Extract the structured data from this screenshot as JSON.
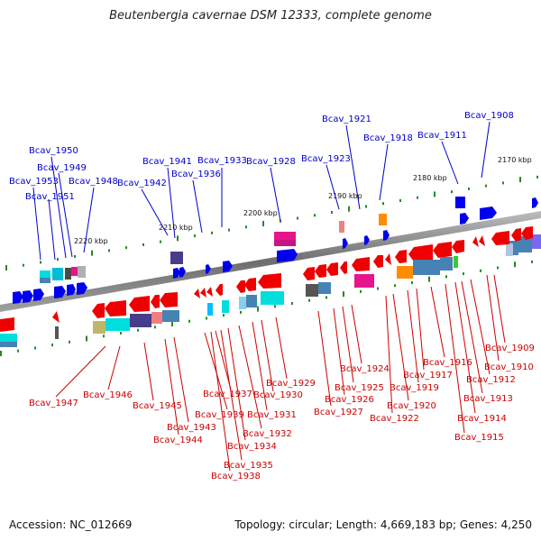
{
  "title": "Beutenbergia cavernae DSM 12333, complete genome",
  "footer": {
    "accession": "Accession: NC_012669",
    "topology": "Topology: circular; Length: 4,669,183 bp; Genes: 4,250"
  },
  "positions": [
    "2170 kbp",
    "2180 kbp",
    "2190 kbp",
    "2200 kbp",
    "2210 kbp",
    "2220 kbp"
  ],
  "labels_top": [
    "Bcav_1908",
    "Bcav_1911",
    "Bcav_1918",
    "Bcav_1921",
    "Bcav_1923",
    "Bcav_1928",
    "Bcav_1933",
    "Bcav_1936",
    "Bcav_1941",
    "Bcav_1942",
    "Bcav_1948",
    "Bcav_1949",
    "Bcav_1950",
    "Bcav_1951",
    "Bcav_1953"
  ],
  "labels_bottom": [
    "Bcav_1909",
    "Bcav_1910",
    "Bcav_1912",
    "Bcav_1913",
    "Bcav_1914",
    "Bcav_1915",
    "Bcav_1916",
    "Bcav_1917",
    "Bcav_1919",
    "Bcav_1920",
    "Bcav_1922",
    "Bcav_1924",
    "Bcav_1925",
    "Bcav_1926",
    "Bcav_1927",
    "Bcav_1929",
    "Bcav_1930",
    "Bcav_1931",
    "Bcav_1932",
    "Bcav_1934",
    "Bcav_1935",
    "Bcav_1937",
    "Bcav_1938",
    "Bcav_1939",
    "Bcav_1943",
    "Bcav_1944",
    "Bcav_1945",
    "Bcav_1946",
    "Bcav_1947"
  ],
  "colors": {
    "forward": "#0000ee",
    "reverse": "#ee0000",
    "backbone": "#808080",
    "cog_cyan": "#00dddd",
    "cog_steel": "#4682b4",
    "cog_slate": "#483d8b",
    "cog_magenta": "#e6158c",
    "cog_orange": "#ff8c00"
  }
}
